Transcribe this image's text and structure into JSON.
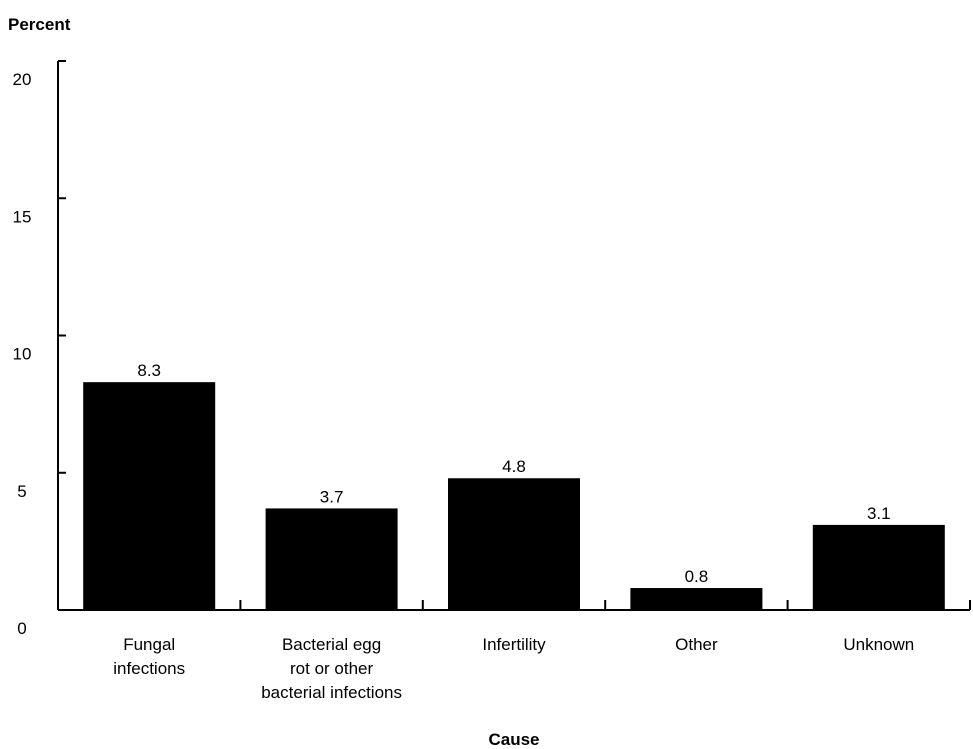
{
  "chart_data": {
    "type": "bar",
    "title": "",
    "ylabel": "Percent",
    "xlabel": "Cause",
    "ylim": [
      0,
      20
    ],
    "yticks": [
      "0",
      "5",
      "10",
      "15",
      "20"
    ],
    "grid": false,
    "categories": [
      [
        "Fungal",
        "infections"
      ],
      [
        "Bacterial egg",
        "rot or other",
        "bacterial infections"
      ],
      [
        "Infertility"
      ],
      [
        "Other"
      ],
      [
        "Unknown"
      ]
    ],
    "values": [
      8.3,
      3.7,
      4.8,
      0.8,
      3.1
    ],
    "data_labels": [
      "8.3",
      "3.7",
      "4.8",
      "0.8",
      "3.1"
    ],
    "bar_color": "#000000"
  }
}
